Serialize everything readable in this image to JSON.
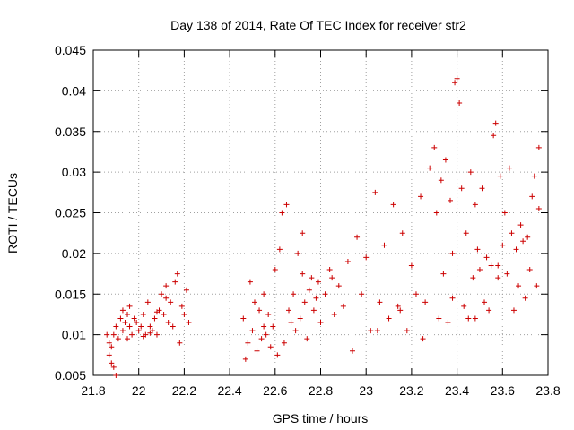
{
  "chart_data": {
    "type": "scatter",
    "title": "Day 138 of 2014, Rate Of TEC Index for receiver str2",
    "xlabel": "GPS time / hours",
    "ylabel": "ROTI / TECUs",
    "xlim": [
      21.8,
      23.8
    ],
    "ylim": [
      0.005,
      0.045
    ],
    "x_ticks": [
      "21.8",
      "22",
      "22.2",
      "22.4",
      "22.6",
      "22.8",
      "23",
      "23.2",
      "23.4",
      "23.6",
      "23.8"
    ],
    "y_ticks": [
      "0.005",
      "0.01",
      "0.015",
      "0.02",
      "0.025",
      "0.03",
      "0.035",
      "0.04",
      "0.045"
    ],
    "grid": true,
    "marker": "+",
    "series": [
      {
        "name": "ROTI",
        "color": "#cc0000",
        "points": [
          [
            21.86,
            0.01
          ],
          [
            21.87,
            0.009
          ],
          [
            21.87,
            0.0075
          ],
          [
            21.88,
            0.0065
          ],
          [
            21.88,
            0.0085
          ],
          [
            21.89,
            0.006
          ],
          [
            21.89,
            0.01
          ],
          [
            21.9,
            0.005
          ],
          [
            21.9,
            0.011
          ],
          [
            21.91,
            0.0095
          ],
          [
            21.92,
            0.012
          ],
          [
            21.93,
            0.0105
          ],
          [
            21.93,
            0.013
          ],
          [
            21.94,
            0.0115
          ],
          [
            21.95,
            0.0125
          ],
          [
            21.96,
            0.011
          ],
          [
            21.96,
            0.0135
          ],
          [
            21.97,
            0.01
          ],
          [
            21.98,
            0.012
          ],
          [
            21.99,
            0.0115
          ],
          [
            22.0,
            0.0105
          ],
          [
            22.01,
            0.011
          ],
          [
            22.02,
            0.0125
          ],
          [
            22.03,
            0.01
          ],
          [
            22.04,
            0.014
          ],
          [
            22.05,
            0.011
          ],
          [
            22.06,
            0.0105
          ],
          [
            22.07,
            0.012
          ],
          [
            22.08,
            0.01
          ],
          [
            22.09,
            0.013
          ],
          [
            22.1,
            0.015
          ],
          [
            22.11,
            0.0125
          ],
          [
            22.12,
            0.0145
          ],
          [
            22.13,
            0.0115
          ],
          [
            22.14,
            0.014
          ],
          [
            22.15,
            0.011
          ],
          [
            22.16,
            0.0165
          ],
          [
            22.17,
            0.0175
          ],
          [
            22.18,
            0.009
          ],
          [
            22.19,
            0.0135
          ],
          [
            22.2,
            0.0125
          ],
          [
            22.21,
            0.0155
          ],
          [
            22.22,
            0.0115
          ],
          [
            21.95,
            0.0095
          ],
          [
            22.02,
            0.0098
          ],
          [
            22.05,
            0.0102
          ],
          [
            22.08,
            0.0128
          ],
          [
            22.12,
            0.016
          ],
          [
            22.46,
            0.012
          ],
          [
            22.47,
            0.007
          ],
          [
            22.48,
            0.009
          ],
          [
            22.49,
            0.0165
          ],
          [
            22.5,
            0.0105
          ],
          [
            22.51,
            0.014
          ],
          [
            22.52,
            0.008
          ],
          [
            22.53,
            0.013
          ],
          [
            22.54,
            0.0095
          ],
          [
            22.55,
            0.015
          ],
          [
            22.56,
            0.01
          ],
          [
            22.57,
            0.0125
          ],
          [
            22.58,
            0.0085
          ],
          [
            22.59,
            0.011
          ],
          [
            22.6,
            0.018
          ],
          [
            22.61,
            0.0075
          ],
          [
            22.62,
            0.0205
          ],
          [
            22.63,
            0.025
          ],
          [
            22.64,
            0.009
          ],
          [
            22.65,
            0.026
          ],
          [
            22.66,
            0.013
          ],
          [
            22.67,
            0.0115
          ],
          [
            22.68,
            0.015
          ],
          [
            22.69,
            0.0105
          ],
          [
            22.7,
            0.02
          ],
          [
            22.71,
            0.012
          ],
          [
            22.72,
            0.0175
          ],
          [
            22.73,
            0.014
          ],
          [
            22.74,
            0.0095
          ],
          [
            22.75,
            0.0155
          ],
          [
            22.76,
            0.017
          ],
          [
            22.77,
            0.013
          ],
          [
            22.78,
            0.0145
          ],
          [
            22.79,
            0.0165
          ],
          [
            22.8,
            0.0115
          ],
          [
            22.82,
            0.015
          ],
          [
            22.84,
            0.018
          ],
          [
            22.86,
            0.0125
          ],
          [
            22.88,
            0.016
          ],
          [
            22.9,
            0.0135
          ],
          [
            22.92,
            0.019
          ],
          [
            22.94,
            0.008
          ],
          [
            22.96,
            0.022
          ],
          [
            22.98,
            0.015
          ],
          [
            23.0,
            0.0195
          ],
          [
            23.02,
            0.0105
          ],
          [
            23.04,
            0.0275
          ],
          [
            23.06,
            0.014
          ],
          [
            23.08,
            0.021
          ],
          [
            23.1,
            0.012
          ],
          [
            23.12,
            0.026
          ],
          [
            23.14,
            0.0135
          ],
          [
            23.16,
            0.0225
          ],
          [
            23.18,
            0.0105
          ],
          [
            23.2,
            0.0185
          ],
          [
            23.22,
            0.015
          ],
          [
            23.24,
            0.027
          ],
          [
            23.26,
            0.014
          ],
          [
            23.28,
            0.0305
          ],
          [
            23.3,
            0.033
          ],
          [
            23.31,
            0.025
          ],
          [
            23.32,
            0.012
          ],
          [
            23.33,
            0.029
          ],
          [
            23.34,
            0.0175
          ],
          [
            23.35,
            0.0315
          ],
          [
            23.36,
            0.0115
          ],
          [
            23.37,
            0.0265
          ],
          [
            23.38,
            0.02
          ],
          [
            23.39,
            0.041
          ],
          [
            23.4,
            0.0415
          ],
          [
            23.41,
            0.0385
          ],
          [
            23.42,
            0.028
          ],
          [
            23.43,
            0.0135
          ],
          [
            23.44,
            0.0225
          ],
          [
            23.45,
            0.012
          ],
          [
            23.46,
            0.03
          ],
          [
            23.47,
            0.017
          ],
          [
            23.48,
            0.026
          ],
          [
            23.49,
            0.0205
          ],
          [
            23.5,
            0.018
          ],
          [
            23.51,
            0.028
          ],
          [
            23.52,
            0.014
          ],
          [
            23.53,
            0.0195
          ],
          [
            23.54,
            0.013
          ],
          [
            23.55,
            0.0185
          ],
          [
            23.56,
            0.0345
          ],
          [
            23.57,
            0.036
          ],
          [
            23.58,
            0.017
          ],
          [
            23.59,
            0.0295
          ],
          [
            23.6,
            0.021
          ],
          [
            23.61,
            0.025
          ],
          [
            23.62,
            0.0175
          ],
          [
            23.63,
            0.0305
          ],
          [
            23.64,
            0.0225
          ],
          [
            23.65,
            0.013
          ],
          [
            23.66,
            0.0205
          ],
          [
            23.67,
            0.016
          ],
          [
            23.68,
            0.0235
          ],
          [
            23.69,
            0.0215
          ],
          [
            23.7,
            0.0145
          ],
          [
            23.71,
            0.022
          ],
          [
            23.72,
            0.018
          ],
          [
            23.73,
            0.027
          ],
          [
            23.74,
            0.0295
          ],
          [
            23.75,
            0.016
          ],
          [
            23.76,
            0.033
          ],
          [
            23.76,
            0.0255
          ],
          [
            22.55,
            0.011
          ],
          [
            22.72,
            0.0225
          ],
          [
            22.85,
            0.017
          ],
          [
            23.05,
            0.0105
          ],
          [
            23.15,
            0.013
          ],
          [
            23.25,
            0.0095
          ],
          [
            23.38,
            0.0145
          ],
          [
            23.48,
            0.012
          ],
          [
            23.58,
            0.0185
          ]
        ]
      }
    ]
  }
}
